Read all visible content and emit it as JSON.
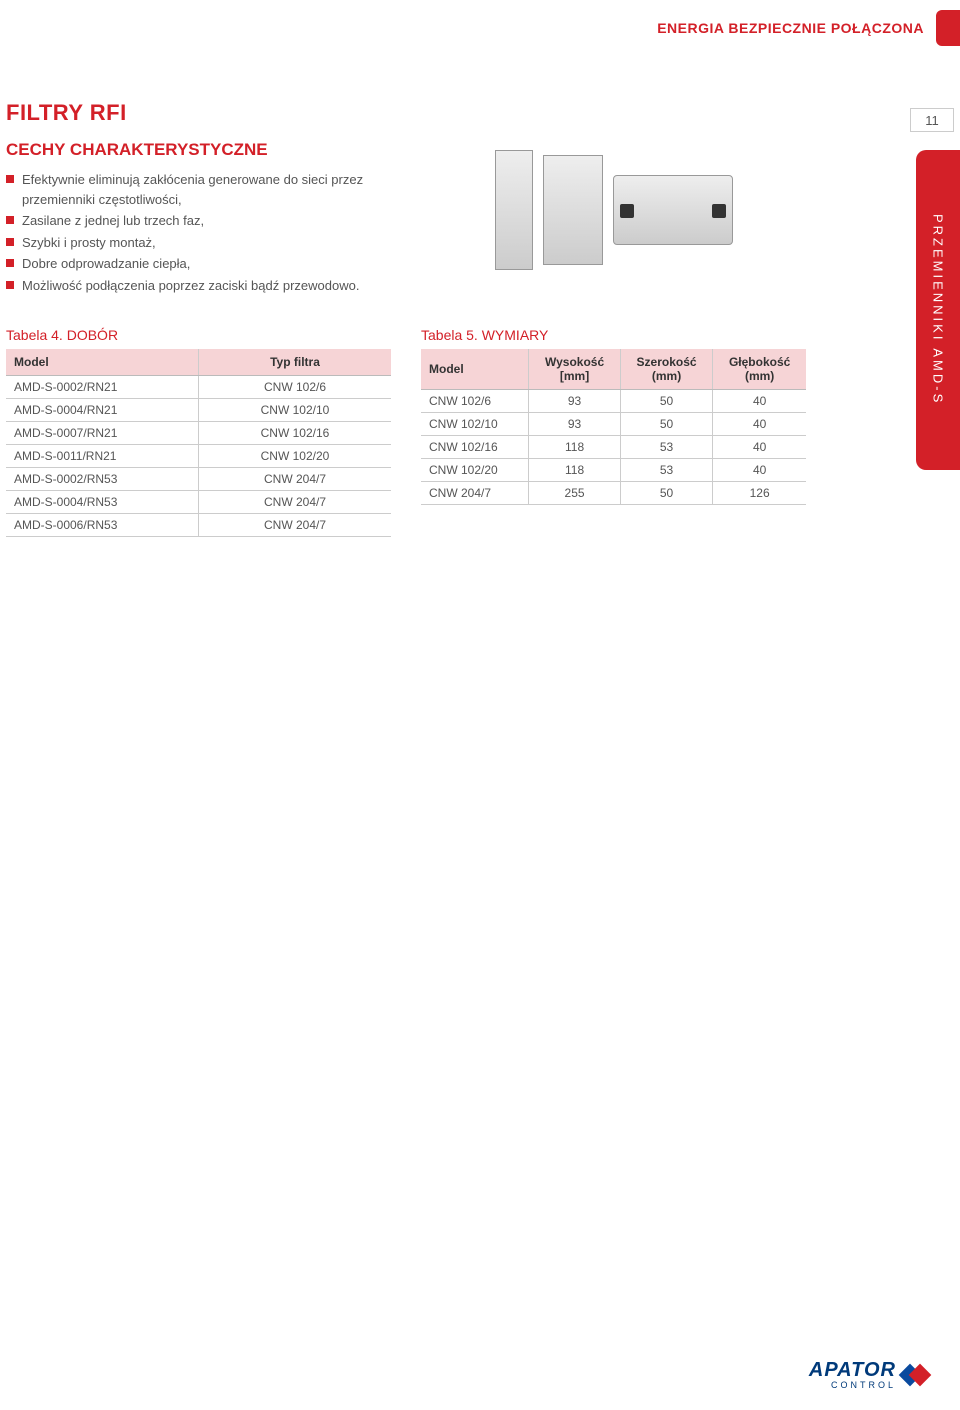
{
  "header": {
    "tagline": "ENERGIA BEZPIECZNIE POŁĄCZONA",
    "page_number": "11",
    "side_tab": "PRZEMIENNIKI AMD-S"
  },
  "section": {
    "title": "FILTRY RFI",
    "subtitle": "CECHY CHARAKTERYSTYCZNE"
  },
  "features": [
    "Efektywnie eliminują zakłócenia generowane do sieci przez przemienniki częstotliwości,",
    "Zasilane z jednej lub trzech faz,",
    "Szybki i prosty montaż,",
    "Dobre odprowadzanie ciepła,",
    "Możliwość podłączenia poprzez zaciski bądź przewodowo."
  ],
  "table4": {
    "caption": "Tabela 4. DOBÓR",
    "headers": [
      "Model",
      "Typ filtra"
    ],
    "rows": [
      [
        "AMD-S-0002/RN21",
        "CNW 102/6"
      ],
      [
        "AMD-S-0004/RN21",
        "CNW 102/10"
      ],
      [
        "AMD-S-0007/RN21",
        "CNW 102/16"
      ],
      [
        "AMD-S-0011/RN21",
        "CNW 102/20"
      ],
      [
        "AMD-S-0002/RN53",
        "CNW 204/7"
      ],
      [
        "AMD-S-0004/RN53",
        "CNW 204/7"
      ],
      [
        "AMD-S-0006/RN53",
        "CNW 204/7"
      ]
    ]
  },
  "table5": {
    "caption": "Tabela 5. WYMIARY",
    "headers": [
      "Model",
      "Wysokość [mm]",
      "Szerokość (mm)",
      "Głębokość (mm)"
    ],
    "rows": [
      [
        "CNW 102/6",
        "93",
        "50",
        "40"
      ],
      [
        "CNW 102/10",
        "93",
        "50",
        "40"
      ],
      [
        "CNW 102/16",
        "118",
        "53",
        "40"
      ],
      [
        "CNW 102/20",
        "118",
        "53",
        "40"
      ],
      [
        "CNW 204/7",
        "255",
        "50",
        "126"
      ]
    ]
  },
  "footer": {
    "brand": "APATOR",
    "sub": "CONTROL"
  },
  "colors": {
    "accent": "#d32028",
    "header_bg": "#f6d4d6",
    "text": "#4a4a4a",
    "logo_blue": "#003a7a"
  }
}
